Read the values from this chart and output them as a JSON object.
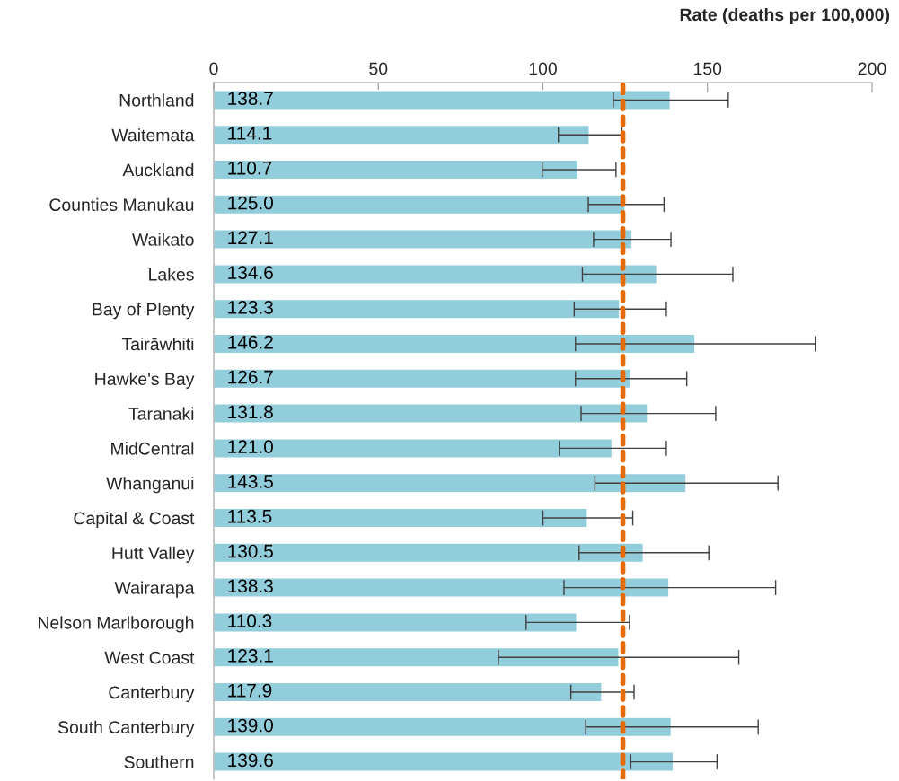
{
  "chart_data": {
    "type": "bar",
    "orientation": "horizontal",
    "xlabel": "Rate (deaths per 100,000)",
    "categories": [
      "Northland",
      "Waitemata",
      "Auckland",
      "Counties Manukau",
      "Waikato",
      "Lakes",
      "Bay of Plenty",
      "Tairāwhiti",
      "Hawke's Bay",
      "Taranaki",
      "MidCentral",
      "Whanganui",
      "Capital & Coast",
      "Hutt Valley",
      "Wairarapa",
      "Nelson Marlborough",
      "West Coast",
      "Canterbury",
      "South Canterbury",
      "Southern"
    ],
    "values": [
      138.7,
      114.1,
      110.7,
      125.0,
      127.1,
      134.6,
      123.3,
      146.2,
      126.7,
      131.8,
      121.0,
      143.5,
      113.5,
      130.5,
      138.3,
      110.3,
      123.1,
      117.9,
      139.0,
      139.6
    ],
    "value_labels": [
      "138.7",
      "114.1",
      "110.7",
      "125.0",
      "127.1",
      "134.6",
      "123.3",
      "146.2",
      "126.7",
      "131.8",
      "121.0",
      "143.5",
      "113.5",
      "130.5",
      "138.3",
      "110.3",
      "123.1",
      "117.9",
      "139.0",
      "139.6"
    ],
    "errors": [
      [
        121.4,
        156.3
      ],
      [
        104.7,
        124.0
      ],
      [
        99.8,
        122.2
      ],
      [
        113.8,
        136.8
      ],
      [
        115.4,
        138.9
      ],
      [
        112.0,
        157.7
      ],
      [
        109.5,
        137.5
      ],
      [
        109.9,
        182.9
      ],
      [
        109.9,
        143.7
      ],
      [
        111.6,
        152.5
      ],
      [
        105.0,
        137.5
      ],
      [
        115.8,
        171.4
      ],
      [
        100.0,
        127.3
      ],
      [
        111.0,
        150.4
      ],
      [
        106.4,
        170.7
      ],
      [
        94.9,
        126.3
      ],
      [
        86.5,
        159.5
      ],
      [
        108.5,
        127.7
      ],
      [
        113.0,
        165.4
      ],
      [
        126.7,
        152.9
      ]
    ],
    "color": "#92cddc",
    "xlim": [
      0,
      200
    ],
    "xticks": [
      0,
      50,
      100,
      150,
      200
    ],
    "grid": false,
    "legend": false,
    "ref_lines": [
      {
        "axis": "x",
        "value": 124.3,
        "color": "#e36c09",
        "line_style": "dashed"
      }
    ]
  }
}
